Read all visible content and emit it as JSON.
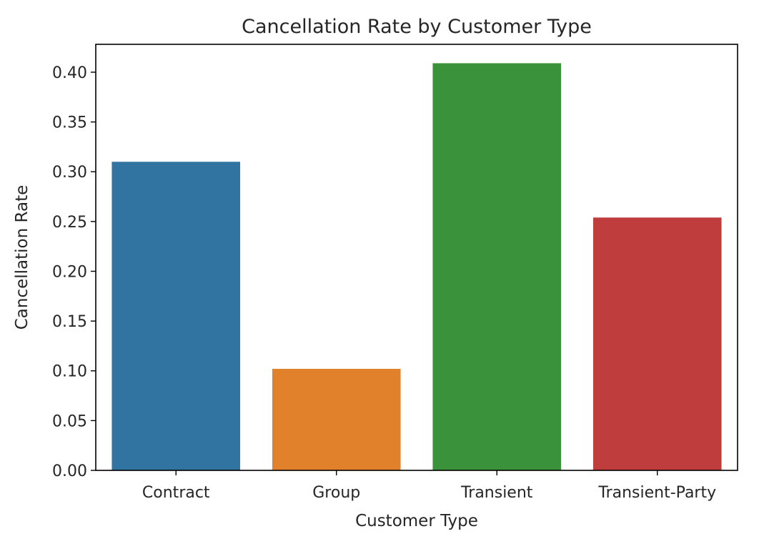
{
  "chart_data": {
    "type": "bar",
    "title": "Cancellation Rate by Customer Type",
    "xlabel": "Customer Type",
    "ylabel": "Cancellation Rate",
    "categories": [
      "Contract",
      "Group",
      "Transient",
      "Transient-Party"
    ],
    "values": [
      0.31,
      0.102,
      0.409,
      0.254
    ],
    "colors": [
      "#3274a1",
      "#e1812c",
      "#3a923a",
      "#c03d3e"
    ],
    "ylim": [
      0,
      0.428
    ],
    "yticks": [
      0.0,
      0.05,
      0.1,
      0.15,
      0.2,
      0.25,
      0.3,
      0.35,
      0.4
    ],
    "ytick_labels": [
      "0.00",
      "0.05",
      "0.10",
      "0.15",
      "0.20",
      "0.25",
      "0.30",
      "0.35",
      "0.40"
    ],
    "grid": false,
    "legend": "none"
  }
}
